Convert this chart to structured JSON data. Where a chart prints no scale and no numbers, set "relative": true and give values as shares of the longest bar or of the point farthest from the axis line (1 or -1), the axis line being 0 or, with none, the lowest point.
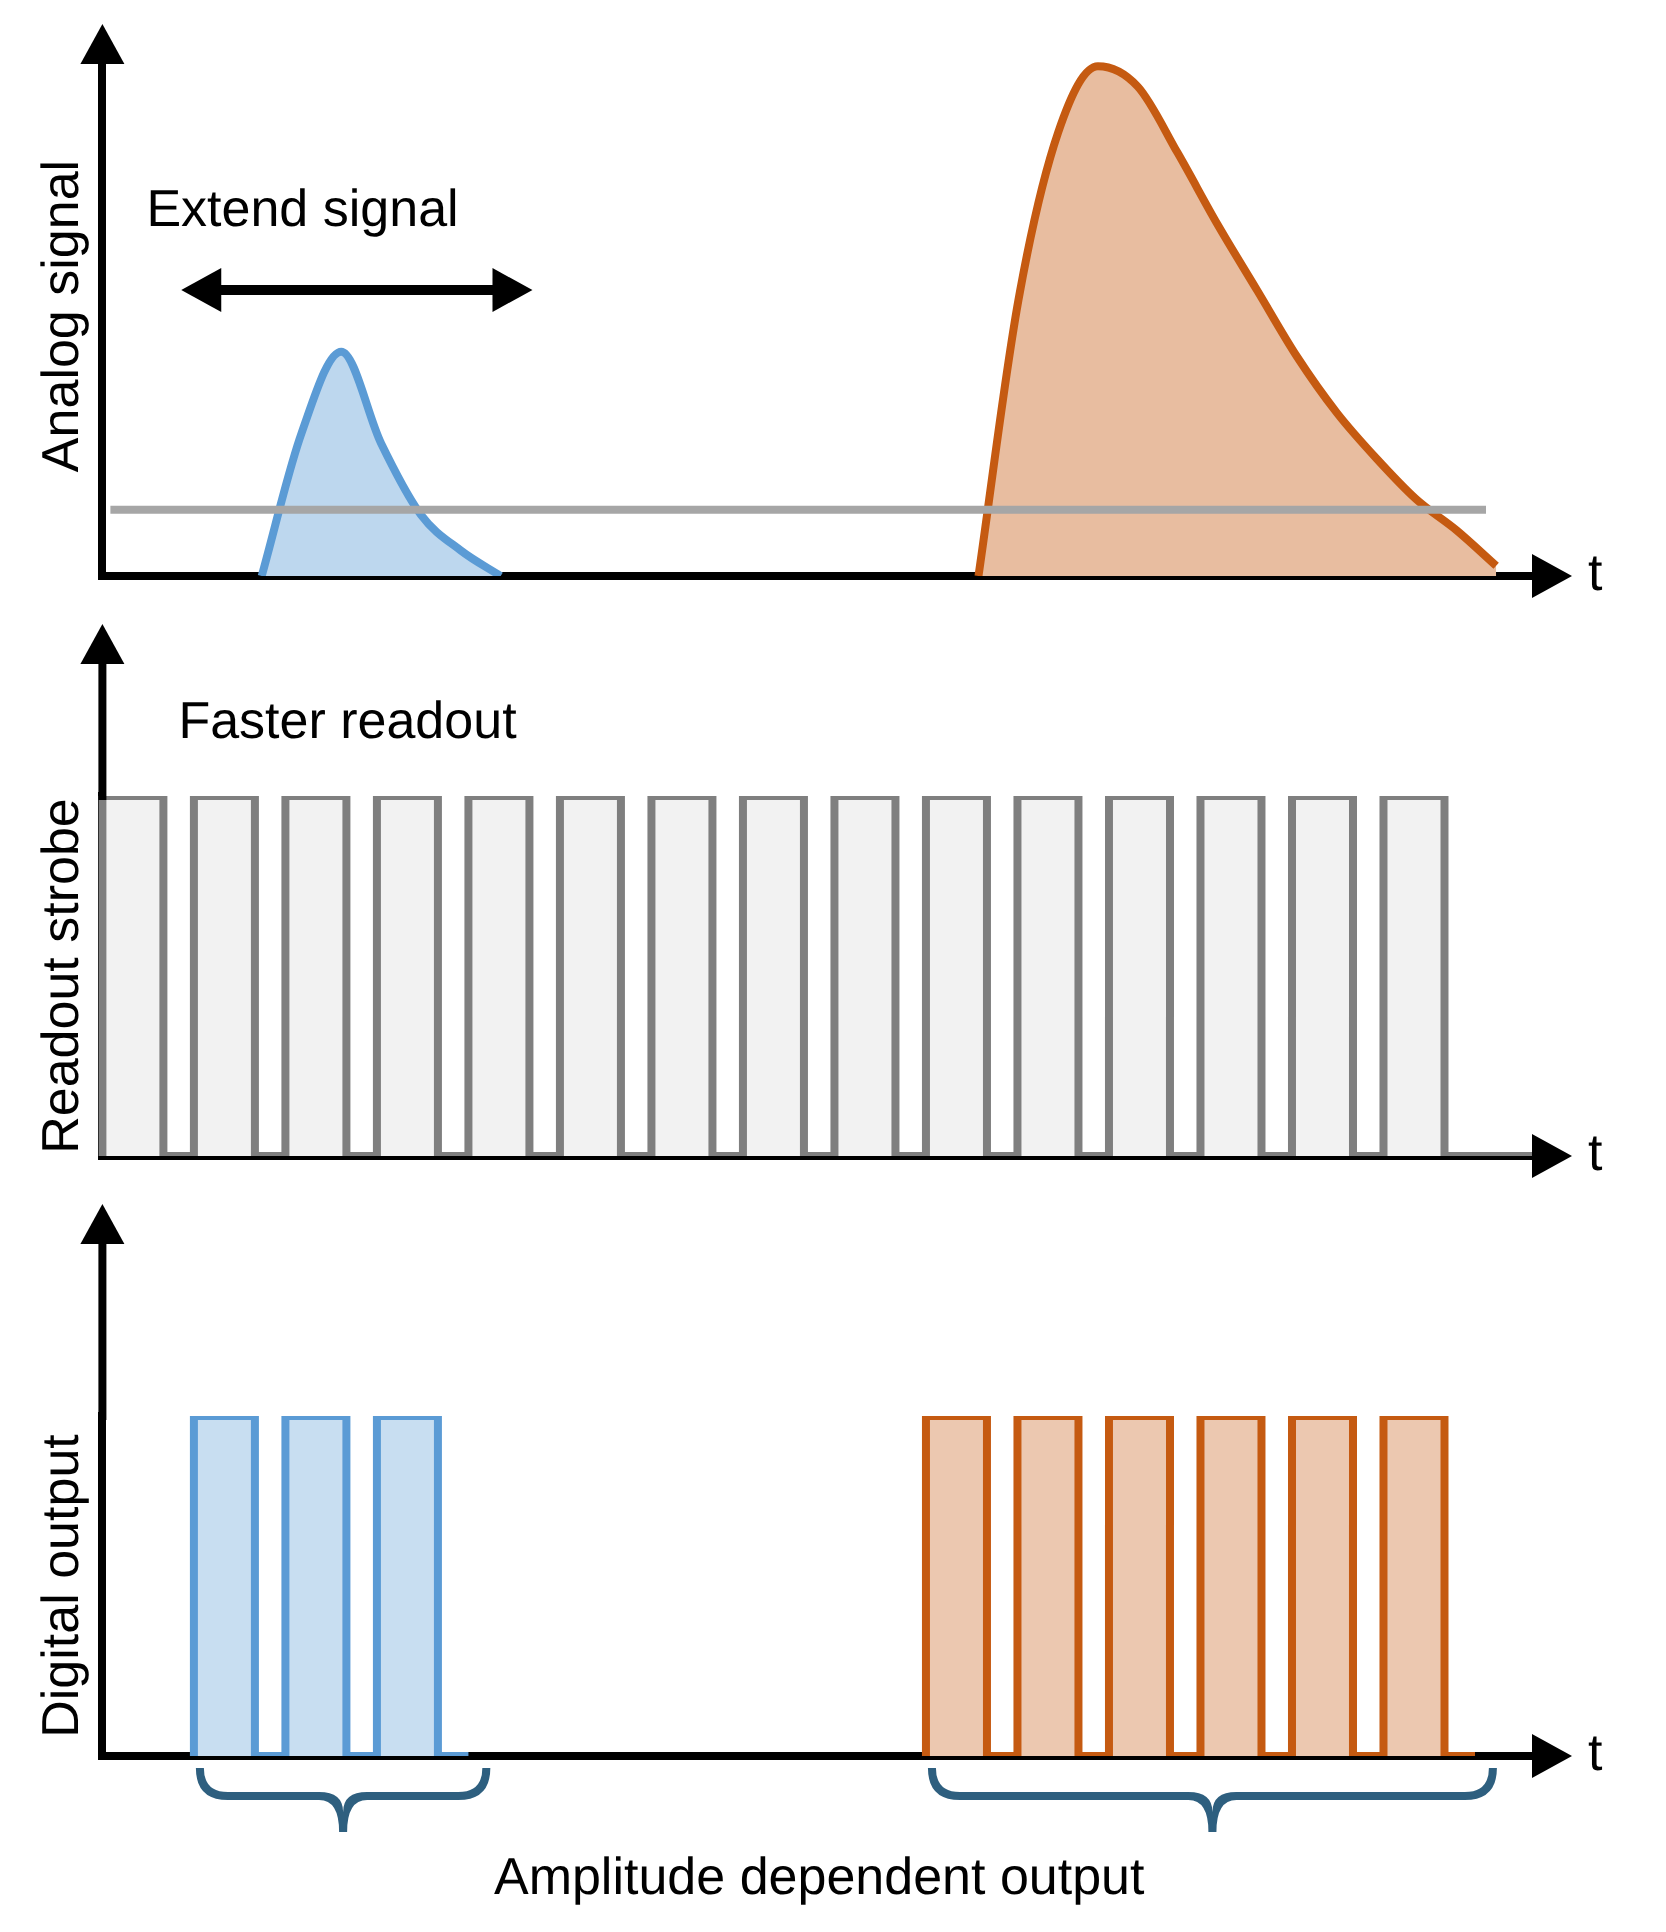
{
  "chart_data": [
    {
      "type": "area",
      "relative": true,
      "ylabel": "Analog signal",
      "xlabel": "t",
      "categories": [
        null,
        null,
        null,
        null,
        null,
        null,
        null,
        null,
        null,
        null,
        null,
        null,
        null,
        null,
        null,
        null,
        null,
        null,
        null,
        null,
        null,
        null,
        null,
        null,
        null,
        null,
        null,
        null,
        null,
        null,
        null,
        null,
        null,
        null,
        null,
        null,
        null
      ],
      "series": [
        {
          "color": "#5b9bd5",
          "values": [
            null,
            null,
            null,
            null,
            0,
            0.28,
            0.44,
            0.26,
            0.12,
            0.05,
            0,
            null,
            null,
            null,
            null,
            null,
            null,
            null,
            null,
            null,
            null,
            null,
            null,
            null,
            null,
            null,
            null,
            null,
            null,
            null,
            null,
            null,
            null,
            null,
            null,
            null,
            null
          ]
        },
        {
          "color": "#c55a11",
          "values": [
            null,
            null,
            null,
            null,
            null,
            null,
            null,
            null,
            null,
            null,
            null,
            null,
            null,
            null,
            null,
            null,
            null,
            null,
            null,
            null,
            null,
            null,
            0,
            0.54,
            0.87,
            1,
            0.96,
            0.83,
            0.69,
            0.56,
            0.43,
            0.32,
            0.23,
            0.15,
            0.09,
            0.02,
            null
          ]
        }
      ],
      "ref_lines": [
        {
          "axis": "y",
          "value": 0.13,
          "color": "#a6a6a6"
        }
      ],
      "annotations": [
        "Extend signal"
      ]
    },
    {
      "type": "step",
      "relative": true,
      "ylabel": "Readout strobe",
      "xlabel": "t",
      "categories": [
        null,
        null,
        null,
        null,
        null,
        null,
        null,
        null,
        null,
        null,
        null,
        null,
        null,
        null,
        null,
        null,
        null,
        null,
        null,
        null,
        null,
        null,
        null,
        null,
        null,
        null,
        null,
        null,
        null,
        null,
        null,
        null,
        null,
        null,
        null,
        null,
        null,
        null,
        null,
        null,
        null,
        null,
        null,
        null,
        null,
        null,
        null,
        null
      ],
      "series": [
        {
          "color": "#7f7f7f",
          "values": [
            0,
            1,
            1,
            0,
            1,
            1,
            0,
            1,
            1,
            0,
            1,
            1,
            0,
            1,
            1,
            0,
            1,
            1,
            0,
            1,
            1,
            0,
            1,
            1,
            0,
            1,
            1,
            0,
            1,
            1,
            0,
            1,
            1,
            0,
            1,
            1,
            0,
            1,
            1,
            0,
            1,
            1,
            0,
            1,
            1,
            0,
            0,
            0
          ]
        }
      ],
      "annotations": [
        "Faster readout"
      ]
    },
    {
      "type": "step",
      "relative": true,
      "ylabel": "Digital output",
      "xlabel": "t",
      "categories": [
        null,
        null,
        null,
        null,
        null,
        null,
        null,
        null,
        null,
        null,
        null,
        null,
        null,
        null,
        null,
        null,
        null,
        null,
        null,
        null,
        null,
        null,
        null,
        null,
        null,
        null,
        null,
        null,
        null,
        null,
        null,
        null,
        null,
        null,
        null,
        null,
        null,
        null,
        null,
        null,
        null,
        null,
        null,
        null,
        null,
        null,
        null,
        null
      ],
      "series": [
        {
          "color": "#5b9bd5",
          "values": [
            null,
            null,
            null,
            0,
            1,
            1,
            0,
            1,
            1,
            0,
            1,
            1,
            0,
            null,
            null,
            null,
            null,
            null,
            null,
            null,
            null,
            null,
            null,
            null,
            null,
            null,
            null,
            null,
            null,
            null,
            null,
            null,
            null,
            null,
            null,
            null,
            null,
            null,
            null,
            null,
            null,
            null,
            null,
            null,
            null,
            null,
            null,
            null
          ]
        },
        {
          "color": "#c55a11",
          "values": [
            null,
            null,
            null,
            null,
            null,
            null,
            null,
            null,
            null,
            null,
            null,
            null,
            null,
            null,
            null,
            null,
            null,
            null,
            null,
            null,
            null,
            null,
            null,
            null,
            null,
            null,
            null,
            0,
            1,
            1,
            0,
            1,
            1,
            0,
            1,
            1,
            0,
            1,
            1,
            0,
            1,
            1,
            0,
            1,
            1,
            0,
            null,
            null
          ]
        }
      ],
      "annotations": [
        "Amplitude dependent output"
      ]
    }
  ]
}
